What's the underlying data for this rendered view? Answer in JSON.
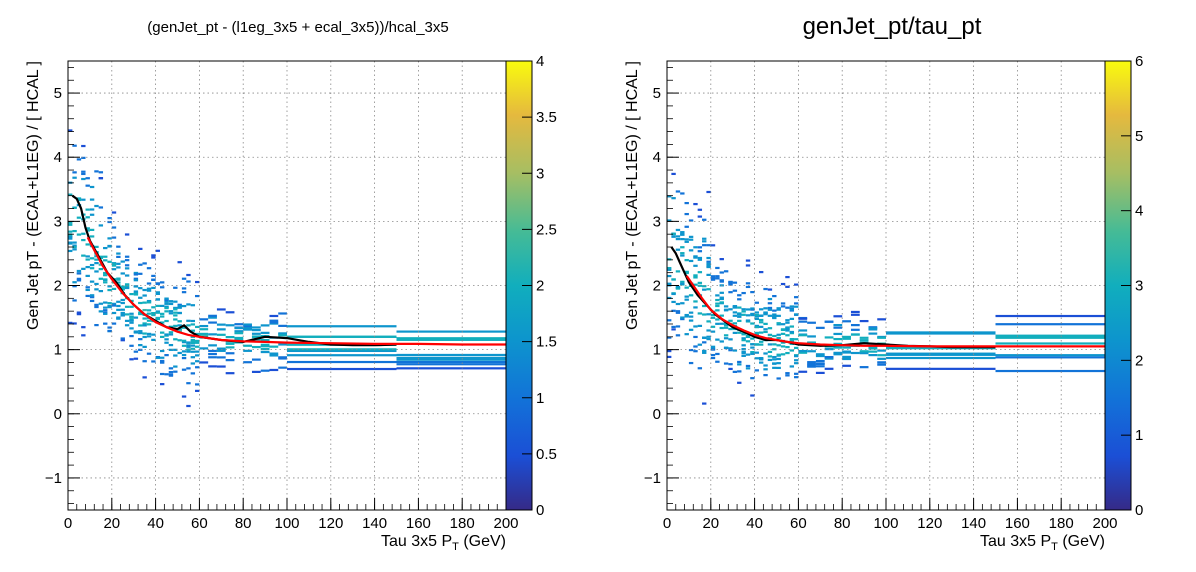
{
  "chart_data": [
    {
      "type": "heatmap",
      "title": "(genJet_pt - (l1eg_3x5 + ecal_3x5))/hcal_3x5",
      "xlabel": "Tau 3x5 P",
      "xlabel_sub": "T",
      "xlabel_unit": " (GeV)",
      "ylabel": "Gen Jet pT - (ECAL+L1EG) / [ HCAL ]",
      "xlim": [
        0,
        200
      ],
      "ylim": [
        -1.5,
        5.5
      ],
      "xticks": [
        "0",
        "20",
        "40",
        "60",
        "80",
        "100",
        "120",
        "140",
        "160",
        "180",
        "200"
      ],
      "yticks": [
        "−1",
        "0",
        "1",
        "2",
        "3",
        "4",
        "5"
      ],
      "grid": true,
      "colorbar": {
        "range": [
          0,
          4
        ],
        "ticks": [
          "0",
          "0.5",
          "1",
          "1.5",
          "2",
          "2.5",
          "3",
          "3.5",
          "4"
        ]
      },
      "series": [
        {
          "color": "#000000",
          "x": [
            2,
            4,
            6,
            8,
            10,
            14,
            18,
            22,
            26,
            30,
            35,
            40,
            45,
            50,
            53,
            56,
            60,
            70,
            80,
            90,
            100,
            110,
            120,
            130,
            140,
            150
          ],
          "y": [
            3.4,
            3.35,
            3.2,
            2.9,
            2.7,
            2.45,
            2.2,
            2.05,
            1.85,
            1.7,
            1.55,
            1.45,
            1.35,
            1.32,
            1.38,
            1.28,
            1.2,
            1.15,
            1.12,
            1.2,
            1.18,
            1.12,
            1.08,
            1.07,
            1.07,
            1.08
          ]
        },
        {
          "color": "#ff0000",
          "x": [
            9,
            12,
            16,
            20,
            25,
            30,
            35,
            40,
            45,
            50,
            55,
            60,
            70,
            80,
            90,
            100,
            120,
            140,
            160,
            180,
            200
          ],
          "y": [
            2.75,
            2.55,
            2.3,
            2.1,
            1.88,
            1.7,
            1.55,
            1.43,
            1.35,
            1.28,
            1.23,
            1.2,
            1.15,
            1.13,
            1.12,
            1.11,
            1.1,
            1.09,
            1.09,
            1.08,
            1.08
          ]
        }
      ]
    },
    {
      "type": "heatmap",
      "title": "genJet_pt/tau_pt",
      "xlabel": "Tau 3x5 P",
      "xlabel_sub": "T",
      "xlabel_unit": " (GeV)",
      "ylabel": "Gen Jet pT - (ECAL+L1EG) / [ HCAL ]",
      "xlim": [
        0,
        200
      ],
      "ylim": [
        -1.5,
        5.5
      ],
      "xticks": [
        "0",
        "20",
        "40",
        "60",
        "80",
        "100",
        "120",
        "140",
        "160",
        "180",
        "200"
      ],
      "yticks": [
        "−1",
        "0",
        "1",
        "2",
        "3",
        "4",
        "5"
      ],
      "grid": true,
      "colorbar": {
        "range": [
          0,
          6
        ],
        "ticks": [
          "0",
          "1",
          "2",
          "3",
          "4",
          "5",
          "6"
        ]
      },
      "series": [
        {
          "color": "#000000",
          "x": [
            2,
            4,
            6,
            8,
            10,
            14,
            18,
            22,
            26,
            30,
            35,
            40,
            45,
            50,
            55,
            60,
            70,
            80,
            90,
            100,
            110,
            120,
            130,
            140,
            150
          ],
          "y": [
            2.6,
            2.5,
            2.35,
            2.2,
            2.05,
            1.85,
            1.7,
            1.55,
            1.45,
            1.35,
            1.28,
            1.2,
            1.15,
            1.15,
            1.12,
            1.08,
            1.06,
            1.07,
            1.1,
            1.08,
            1.06,
            1.05,
            1.04,
            1.04,
            1.04
          ]
        },
        {
          "color": "#ff0000",
          "x": [
            9,
            12,
            16,
            20,
            25,
            30,
            35,
            40,
            45,
            50,
            55,
            60,
            70,
            80,
            90,
            100,
            120,
            140,
            160,
            180,
            200
          ],
          "y": [
            2.15,
            2.0,
            1.8,
            1.62,
            1.48,
            1.38,
            1.3,
            1.23,
            1.18,
            1.15,
            1.12,
            1.1,
            1.08,
            1.07,
            1.06,
            1.06,
            1.05,
            1.05,
            1.05,
            1.05,
            1.05
          ]
        }
      ]
    }
  ]
}
